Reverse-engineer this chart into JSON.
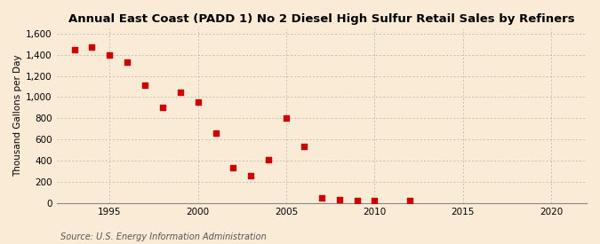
{
  "title": "Annual East Coast (PADD 1) No 2 Diesel High Sulfur Retail Sales by Refiners",
  "ylabel": "Thousand Gallons per Day",
  "source": "Source: U.S. Energy Information Administration",
  "background_color": "#faebd7",
  "x_values": [
    1993,
    1994,
    1995,
    1996,
    1997,
    1998,
    1999,
    2000,
    2001,
    2002,
    2003,
    2004,
    2005,
    2006,
    2007,
    2008,
    2009,
    2010,
    2012
  ],
  "y_values": [
    1445,
    1475,
    1400,
    1330,
    1110,
    900,
    1045,
    950,
    660,
    330,
    255,
    405,
    800,
    530,
    45,
    30,
    20,
    25,
    20
  ],
  "marker_color": "#cc0000",
  "marker_size": 18,
  "xlim": [
    1992,
    2022
  ],
  "ylim": [
    0,
    1650
  ],
  "yticks": [
    0,
    200,
    400,
    600,
    800,
    1000,
    1200,
    1400,
    1600
  ],
  "xticks": [
    1995,
    2000,
    2005,
    2010,
    2015,
    2020
  ],
  "ytick_labels": [
    "0",
    "200",
    "400",
    "600",
    "800",
    "1,000",
    "1,200",
    "1,400",
    "1,600"
  ],
  "grid_color": "#b0b0b0",
  "title_fontsize": 9.5,
  "axis_fontsize": 7.5,
  "source_fontsize": 7
}
